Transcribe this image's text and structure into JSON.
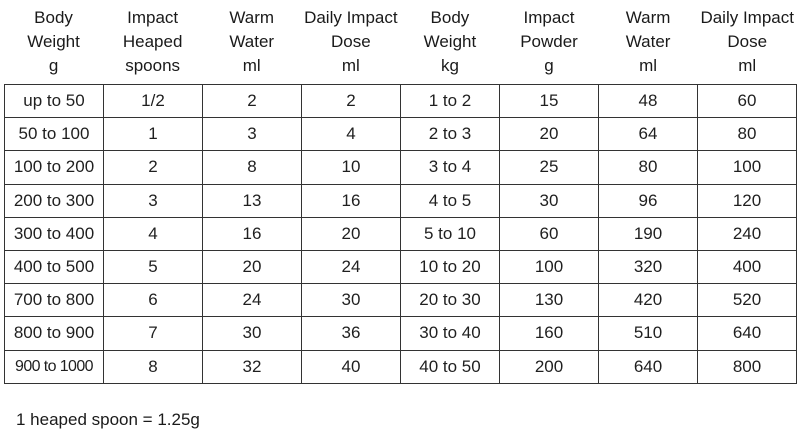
{
  "headers": [
    [
      "Body",
      "Weight",
      "g"
    ],
    [
      "Impact",
      "Heaped",
      "spoons"
    ],
    [
      "Warm",
      "Water",
      "ml"
    ],
    [
      "Daily Impact",
      "Dose",
      "ml"
    ],
    [
      "Body",
      "Weight",
      "kg"
    ],
    [
      "Impact",
      "Powder",
      "g"
    ],
    [
      "Warm",
      "Water",
      "ml"
    ],
    [
      "Daily Impact",
      "Dose",
      "ml"
    ]
  ],
  "rows": [
    [
      "up to 50",
      "1/2",
      "2",
      "2",
      "1 to 2",
      "15",
      "48",
      "60"
    ],
    [
      "50 to 100",
      "1",
      "3",
      "4",
      "2 to 3",
      "20",
      "64",
      "80"
    ],
    [
      "100 to 200",
      "2",
      "8",
      "10",
      "3 to 4",
      "25",
      "80",
      "100"
    ],
    [
      "200 to 300",
      "3",
      "13",
      "16",
      "4 to 5",
      "30",
      "96",
      "120"
    ],
    [
      "300 to 400",
      "4",
      "16",
      "20",
      "5 to 10",
      "60",
      "190",
      "240"
    ],
    [
      "400 to 500",
      "5",
      "20",
      "24",
      "10 to 20",
      "100",
      "320",
      "400"
    ],
    [
      "700 to 800",
      "6",
      "24",
      "30",
      "20 to 30",
      "130",
      "420",
      "520"
    ],
    [
      "800 to 900",
      "7",
      "30",
      "36",
      "30 to 40",
      "160",
      "510",
      "640"
    ],
    [
      "900 to 1000",
      "8",
      "32",
      "40",
      "40 to 50",
      "200",
      "640",
      "800"
    ]
  ],
  "footnote": "1 heaped spoon = 1.25g"
}
